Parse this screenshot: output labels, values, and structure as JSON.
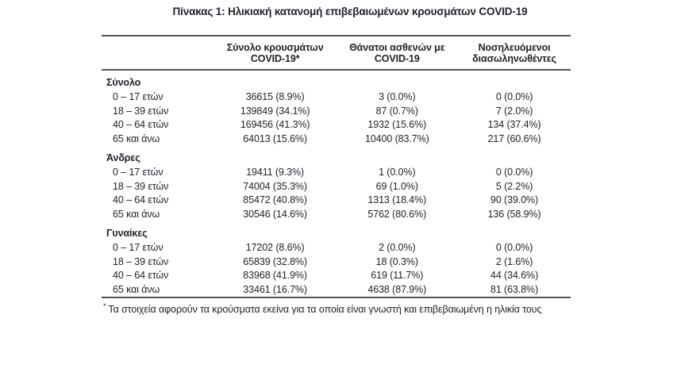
{
  "title": "Πίνακας 1: Ηλικιακή κατανομή επιβεβαιωμένων κρουσμάτων COVID-19",
  "colors": {
    "text": "#242129",
    "rule": "#54555a",
    "background": "#ffffff"
  },
  "table": {
    "columns": [
      {
        "line1": "Σύνολο κρουσμάτων",
        "line2": "COVID-19*"
      },
      {
        "line1": "Θάνατοι ασθενών με",
        "line2": "COVID-19"
      },
      {
        "line1": "Νοσηλευόμενοι",
        "line2": "διασωληνωθέντες"
      }
    ],
    "sections": [
      {
        "header": "Σύνολο",
        "rows": [
          {
            "label": "0 – 17 ετών",
            "cases": "36615 (8.9%)",
            "deaths": "3 (0.0%)",
            "intubated": "0 (0.0%)"
          },
          {
            "label": "18 – 39 ετών",
            "cases": "139849 (34.1%)",
            "deaths": "87 (0.7%)",
            "intubated": "7 (2.0%)"
          },
          {
            "label": "40 – 64 ετών",
            "cases": "169456 (41.3%)",
            "deaths": "1932 (15.6%)",
            "intubated": "134 (37.4%)"
          },
          {
            "label": "65 και άνω",
            "cases": "64013 (15.6%)",
            "deaths": "10400 (83.7%)",
            "intubated": "217 (60.6%)"
          }
        ]
      },
      {
        "header": "Άνδρες",
        "rows": [
          {
            "label": "0 – 17 ετών",
            "cases": "19411 (9.3%)",
            "deaths": "1 (0.0%)",
            "intubated": "0 (0.0%)"
          },
          {
            "label": "18 – 39 ετών",
            "cases": "74004 (35.3%)",
            "deaths": "69 (1.0%)",
            "intubated": "5 (2.2%)"
          },
          {
            "label": "40 – 64 ετών",
            "cases": "85472 (40.8%)",
            "deaths": "1313 (18.4%)",
            "intubated": "90 (39.0%)"
          },
          {
            "label": "65 και άνω",
            "cases": "30546 (14.6%)",
            "deaths": "5762 (80.6%)",
            "intubated": "136 (58.9%)"
          }
        ]
      },
      {
        "header": "Γυναίκες",
        "rows": [
          {
            "label": "0 – 17 ετών",
            "cases": "17202 (8.6%)",
            "deaths": "2 (0.0%)",
            "intubated": "0 (0.0%)"
          },
          {
            "label": "18 – 39 ετών",
            "cases": "65839 (32.8%)",
            "deaths": "18 (0.3%)",
            "intubated": "2 (1.6%)"
          },
          {
            "label": "40 – 64 ετών",
            "cases": "83968 (41.9%)",
            "deaths": "619 (11.7%)",
            "intubated": "44 (34.6%)"
          },
          {
            "label": "65 και άνω",
            "cases": "33461 (16.7%)",
            "deaths": "4638 (87.9%)",
            "intubated": "81 (63.8%)"
          }
        ]
      }
    ]
  },
  "footnote": {
    "marker": "*",
    "text": "Τα στοιχεία αφορούν τα κρούσματα εκείνα για τα οποία είναι γνωστή και επιβεβαιωμένη η ηλικία τους"
  }
}
